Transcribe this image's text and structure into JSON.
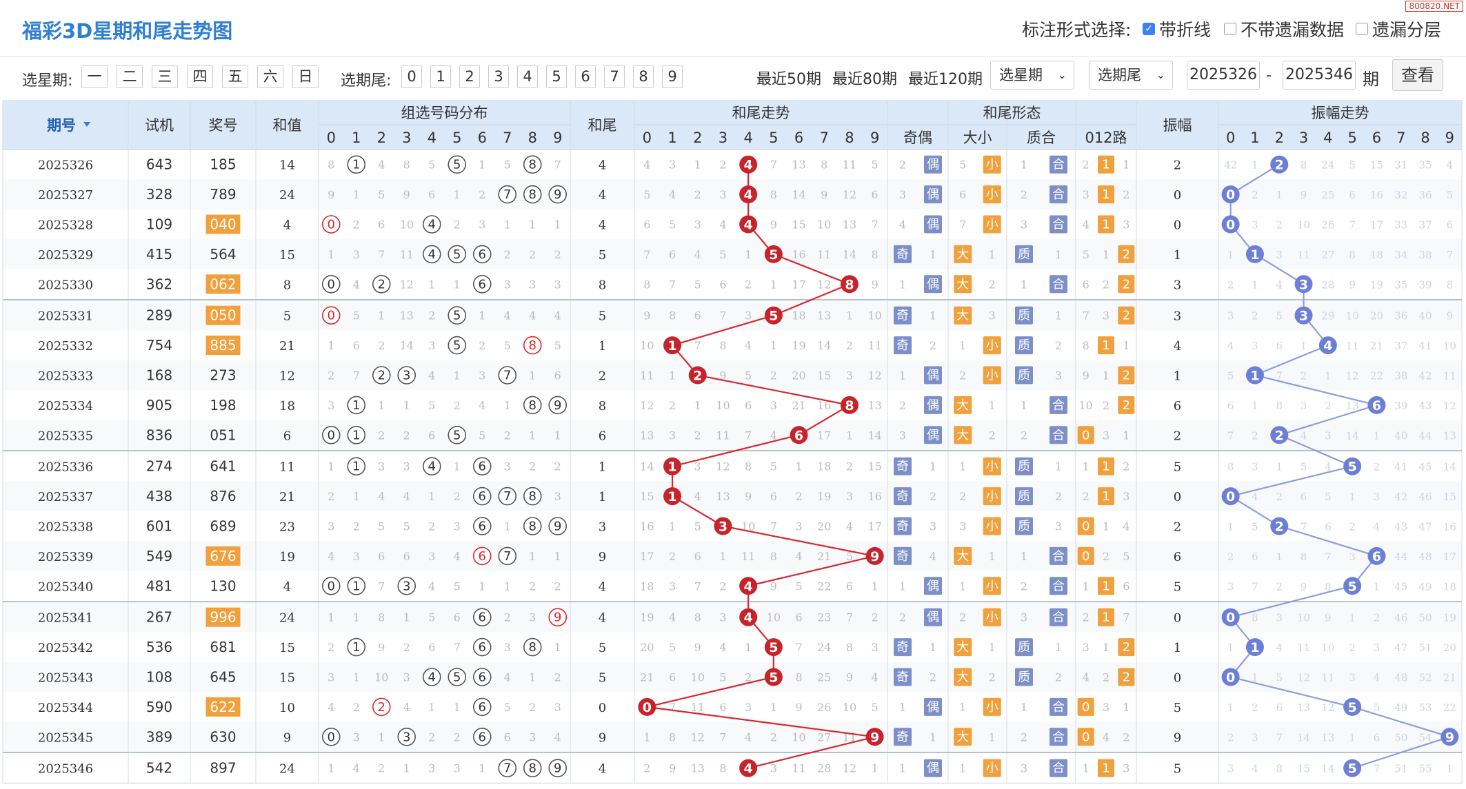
{
  "header": {
    "title": "福彩3D星期和尾走势图",
    "option_label": "标注形式选择:",
    "opt_lines": "带折线",
    "opt_nomiss": "不带遗漏数据",
    "opt_layer": "遗漏分层",
    "watermark": "800820.NET"
  },
  "filter": {
    "weekday_label": "选星期:",
    "weekdays": [
      "一",
      "二",
      "三",
      "四",
      "五",
      "六",
      "日"
    ],
    "tail_label": "选期尾:",
    "tails": [
      "0",
      "1",
      "2",
      "3",
      "4",
      "5",
      "6",
      "7",
      "8",
      "9"
    ],
    "recent50": "最近50期",
    "recent80": "最近80期",
    "recent120": "最近120期",
    "sel_week": "选星期",
    "sel_tail": "选期尾",
    "from": "2025326",
    "dash": "-",
    "to": "2025346",
    "qi": "期",
    "query": "查看"
  },
  "table": {
    "h_issue": "期号",
    "h_trial": "试机",
    "h_award": "奖号",
    "h_sum": "和值",
    "h_zuxuan": "组选号码分布",
    "h_tail": "和尾",
    "h_trend": "和尾走势",
    "h_form": "和尾形态",
    "h_parity": "奇偶",
    "h_size": "大小",
    "h_prime": "质合",
    "h_012": "012路",
    "h_amp": "振幅",
    "h_amptrend": "振幅走势",
    "parity_odd": "奇",
    "parity_even": "偶",
    "size_big": "大",
    "size_small": "小",
    "prime_p": "质",
    "prime_c": "合",
    "digits": [
      "0",
      "1",
      "2",
      "3",
      "4",
      "5",
      "6",
      "7",
      "8",
      "9"
    ],
    "rows": [
      {
        "issue": "2025326",
        "trial": "643",
        "award": "185",
        "group": false,
        "sum": "14",
        "tail": "4",
        "amp": "2",
        "mz": [
          8,
          "*",
          4,
          8,
          5,
          "*",
          1,
          5,
          "*",
          7
        ],
        "mt": [
          4,
          3,
          1,
          2,
          "*",
          7,
          13,
          8,
          11,
          5
        ],
        "mp": [
          2,
          "*",
          5,
          "*",
          1,
          "*"
        ],
        "m012": [
          2,
          "*",
          1
        ],
        "ma": [
          42,
          1,
          "*",
          8,
          24,
          5,
          15,
          31,
          35,
          4
        ]
      },
      {
        "issue": "2025327",
        "trial": "328",
        "award": "789",
        "group": false,
        "sum": "24",
        "tail": "4",
        "amp": "0",
        "mz": [
          9,
          1,
          5,
          9,
          6,
          1,
          2,
          "*",
          "*",
          "*"
        ],
        "mt": [
          5,
          4,
          2,
          3,
          "*",
          8,
          14,
          9,
          12,
          6
        ],
        "mp": [
          3,
          "*",
          6,
          "*",
          2,
          "*"
        ],
        "m012": [
          3,
          "*",
          2
        ],
        "ma": [
          "*",
          2,
          1,
          9,
          25,
          6,
          16,
          32,
          36,
          5
        ]
      },
      {
        "issue": "2025328",
        "trial": "109",
        "award": "040",
        "group": true,
        "sum": "4",
        "tail": "4",
        "amp": "0",
        "mz": [
          "*",
          2,
          6,
          10,
          "*",
          2,
          3,
          1,
          1,
          1
        ],
        "mt": [
          6,
          5,
          3,
          4,
          "*",
          9,
          15,
          10,
          13,
          7
        ],
        "mp": [
          4,
          "*",
          7,
          "*",
          3,
          "*"
        ],
        "m012": [
          4,
          "*",
          3
        ],
        "ma": [
          "*",
          3,
          2,
          10,
          26,
          7,
          17,
          33,
          37,
          6
        ]
      },
      {
        "issue": "2025329",
        "trial": "415",
        "award": "564",
        "group": false,
        "sum": "15",
        "tail": "5",
        "amp": "1",
        "mz": [
          1,
          3,
          7,
          11,
          "*",
          "*",
          "*",
          2,
          2,
          2
        ],
        "mt": [
          7,
          6,
          4,
          5,
          1,
          "*",
          16,
          11,
          14,
          8
        ],
        "mp": [
          "*",
          1,
          "*",
          1,
          "*",
          1
        ],
        "m012": [
          5,
          1,
          "*"
        ],
        "ma": [
          1,
          "*",
          3,
          11,
          27,
          8,
          18,
          34,
          38,
          7
        ]
      },
      {
        "issue": "2025330",
        "trial": "362",
        "award": "062",
        "group": true,
        "sum": "8",
        "tail": "8",
        "amp": "3",
        "mz": [
          "*",
          4,
          "*",
          12,
          1,
          1,
          "*",
          3,
          3,
          3
        ],
        "mt": [
          8,
          7,
          5,
          6,
          2,
          1,
          17,
          12,
          "*",
          9
        ],
        "mp": [
          1,
          "*",
          "*",
          2,
          1,
          "*"
        ],
        "m012": [
          6,
          2,
          "*"
        ],
        "ma": [
          2,
          1,
          4,
          "*",
          28,
          9,
          19,
          35,
          39,
          8
        ]
      },
      {
        "issue": "2025331",
        "trial": "289",
        "award": "050",
        "group": true,
        "sum": "5",
        "tail": "5",
        "amp": "3",
        "mz": [
          "*",
          5,
          1,
          13,
          2,
          "*",
          1,
          4,
          4,
          4
        ],
        "mt": [
          9,
          8,
          6,
          7,
          3,
          "*",
          18,
          13,
          1,
          10
        ],
        "mp": [
          "*",
          1,
          "*",
          3,
          "*",
          1
        ],
        "m012": [
          7,
          3,
          "*"
        ],
        "ma": [
          3,
          2,
          5,
          "*",
          29,
          10,
          20,
          36,
          40,
          9
        ]
      },
      {
        "issue": "2025332",
        "trial": "754",
        "award": "885",
        "group": true,
        "sum": "21",
        "tail": "1",
        "amp": "4",
        "mz": [
          1,
          6,
          2,
          14,
          3,
          "*",
          2,
          5,
          "*",
          5
        ],
        "mt": [
          10,
          "*",
          7,
          8,
          4,
          1,
          19,
          14,
          2,
          11
        ],
        "mp": [
          "*",
          2,
          1,
          "*",
          "*",
          2
        ],
        "m012": [
          8,
          "*",
          1
        ],
        "ma": [
          4,
          3,
          6,
          1,
          "*",
          11,
          21,
          37,
          41,
          10
        ]
      },
      {
        "issue": "2025333",
        "trial": "168",
        "award": "273",
        "group": false,
        "sum": "12",
        "tail": "2",
        "amp": "1",
        "mz": [
          2,
          7,
          "*",
          "*",
          4,
          1,
          3,
          "*",
          1,
          6
        ],
        "mt": [
          11,
          1,
          "*",
          9,
          5,
          2,
          20,
          15,
          3,
          12
        ],
        "mp": [
          1,
          "*",
          2,
          "*",
          "*",
          3
        ],
        "m012": [
          9,
          1,
          "*"
        ],
        "ma": [
          5,
          "*",
          7,
          2,
          1,
          12,
          22,
          38,
          42,
          11
        ]
      },
      {
        "issue": "2025334",
        "trial": "905",
        "award": "198",
        "group": false,
        "sum": "18",
        "tail": "8",
        "amp": "6",
        "mz": [
          3,
          "*",
          1,
          1,
          5,
          2,
          4,
          1,
          "*",
          "*"
        ],
        "mt": [
          12,
          2,
          1,
          10,
          6,
          3,
          21,
          16,
          "*",
          13
        ],
        "mp": [
          2,
          "*",
          "*",
          1,
          1,
          "*"
        ],
        "m012": [
          10,
          2,
          "*"
        ],
        "ma": [
          6,
          1,
          8,
          3,
          2,
          13,
          "*",
          39,
          43,
          12
        ]
      },
      {
        "issue": "2025335",
        "trial": "836",
        "award": "051",
        "group": false,
        "sum": "6",
        "tail": "6",
        "amp": "2",
        "mz": [
          "*",
          "*",
          2,
          2,
          6,
          "*",
          5,
          2,
          1,
          1
        ],
        "mt": [
          13,
          3,
          2,
          11,
          7,
          4,
          "*",
          17,
          1,
          14
        ],
        "mp": [
          3,
          "*",
          "*",
          2,
          2,
          "*"
        ],
        "m012": [
          "*",
          3,
          1
        ],
        "ma": [
          7,
          2,
          "*",
          4,
          3,
          14,
          1,
          40,
          44,
          13
        ]
      },
      {
        "issue": "2025336",
        "trial": "274",
        "award": "641",
        "group": false,
        "sum": "11",
        "tail": "1",
        "amp": "5",
        "mz": [
          1,
          "*",
          3,
          3,
          "*",
          1,
          "*",
          3,
          2,
          2
        ],
        "mt": [
          14,
          "*",
          3,
          12,
          8,
          5,
          1,
          18,
          2,
          15
        ],
        "mp": [
          "*",
          1,
          1,
          "*",
          "*",
          1
        ],
        "m012": [
          1,
          "*",
          2
        ],
        "ma": [
          8,
          3,
          1,
          5,
          4,
          "*",
          2,
          41,
          45,
          14
        ]
      },
      {
        "issue": "2025337",
        "trial": "438",
        "award": "876",
        "group": false,
        "sum": "21",
        "tail": "1",
        "amp": "0",
        "mz": [
          2,
          1,
          4,
          4,
          1,
          2,
          "*",
          "*",
          "*",
          3
        ],
        "mt": [
          15,
          "*",
          4,
          13,
          9,
          6,
          2,
          19,
          3,
          16
        ],
        "mp": [
          "*",
          2,
          2,
          "*",
          "*",
          2
        ],
        "m012": [
          2,
          "*",
          3
        ],
        "ma": [
          "*",
          4,
          2,
          6,
          5,
          1,
          3,
          42,
          46,
          15
        ]
      },
      {
        "issue": "2025338",
        "trial": "601",
        "award": "689",
        "group": false,
        "sum": "23",
        "tail": "3",
        "amp": "2",
        "mz": [
          3,
          2,
          5,
          5,
          2,
          3,
          "*",
          1,
          "*",
          "*"
        ],
        "mt": [
          16,
          1,
          5,
          "*",
          10,
          7,
          3,
          20,
          4,
          17
        ],
        "mp": [
          "*",
          3,
          3,
          "*",
          "*",
          3
        ],
        "m012": [
          "*",
          1,
          4
        ],
        "ma": [
          1,
          5,
          "*",
          7,
          6,
          2,
          4,
          43,
          47,
          16
        ]
      },
      {
        "issue": "2025339",
        "trial": "549",
        "award": "676",
        "group": true,
        "sum": "19",
        "tail": "9",
        "amp": "6",
        "mz": [
          4,
          3,
          6,
          6,
          3,
          4,
          "*",
          "*",
          1,
          1
        ],
        "mt": [
          17,
          2,
          6,
          1,
          11,
          8,
          4,
          21,
          5,
          "*"
        ],
        "mp": [
          "*",
          4,
          "*",
          1,
          1,
          "*"
        ],
        "m012": [
          "*",
          2,
          5
        ],
        "ma": [
          2,
          6,
          1,
          8,
          7,
          3,
          "*",
          44,
          48,
          17
        ]
      },
      {
        "issue": "2025340",
        "trial": "481",
        "award": "130",
        "group": false,
        "sum": "4",
        "tail": "4",
        "amp": "5",
        "mz": [
          "*",
          "*",
          7,
          "*",
          4,
          5,
          1,
          1,
          2,
          2
        ],
        "mt": [
          18,
          3,
          7,
          2,
          "*",
          9,
          5,
          22,
          6,
          1
        ],
        "mp": [
          1,
          "*",
          1,
          "*",
          2,
          "*"
        ],
        "m012": [
          1,
          "*",
          6
        ],
        "ma": [
          3,
          7,
          2,
          9,
          8,
          "*",
          1,
          45,
          49,
          18
        ]
      },
      {
        "issue": "2025341",
        "trial": "267",
        "award": "996",
        "group": true,
        "sum": "24",
        "tail": "4",
        "amp": "0",
        "mz": [
          1,
          1,
          8,
          1,
          5,
          6,
          "*",
          2,
          3,
          "*"
        ],
        "mt": [
          19,
          4,
          8,
          3,
          "*",
          10,
          6,
          23,
          7,
          2
        ],
        "mp": [
          2,
          "*",
          2,
          "*",
          3,
          "*"
        ],
        "m012": [
          2,
          "*",
          7
        ],
        "ma": [
          "*",
          8,
          3,
          10,
          9,
          1,
          2,
          46,
          50,
          19
        ]
      },
      {
        "issue": "2025342",
        "trial": "536",
        "award": "681",
        "group": false,
        "sum": "15",
        "tail": "5",
        "amp": "1",
        "mz": [
          2,
          "*",
          9,
          2,
          6,
          7,
          "*",
          3,
          "*",
          1
        ],
        "mt": [
          20,
          5,
          9,
          4,
          1,
          "*",
          7,
          24,
          8,
          3
        ],
        "mp": [
          "*",
          1,
          "*",
          1,
          "*",
          1
        ],
        "m012": [
          3,
          1,
          "*"
        ],
        "ma": [
          1,
          "*",
          4,
          11,
          10,
          2,
          3,
          47,
          51,
          20
        ]
      },
      {
        "issue": "2025343",
        "trial": "108",
        "award": "645",
        "group": false,
        "sum": "15",
        "tail": "5",
        "amp": "0",
        "mz": [
          3,
          1,
          10,
          3,
          "*",
          "*",
          "*",
          4,
          1,
          2
        ],
        "mt": [
          21,
          6,
          10,
          5,
          2,
          "*",
          8,
          25,
          9,
          4
        ],
        "mp": [
          "*",
          2,
          "*",
          2,
          "*",
          2
        ],
        "m012": [
          4,
          2,
          "*"
        ],
        "ma": [
          "*",
          1,
          5,
          12,
          11,
          3,
          4,
          48,
          52,
          21
        ]
      },
      {
        "issue": "2025344",
        "trial": "590",
        "award": "622",
        "group": true,
        "sum": "10",
        "tail": "0",
        "amp": "5",
        "mz": [
          4,
          2,
          "*",
          4,
          1,
          1,
          "*",
          5,
          2,
          3
        ],
        "mt": [
          "*",
          7,
          11,
          6,
          3,
          1,
          9,
          26,
          10,
          5
        ],
        "mp": [
          1,
          "*",
          1,
          "*",
          1,
          "*"
        ],
        "m012": [
          "*",
          3,
          1
        ],
        "ma": [
          1,
          2,
          6,
          13,
          12,
          "*",
          5,
          49,
          53,
          22
        ]
      },
      {
        "issue": "2025345",
        "trial": "389",
        "award": "630",
        "group": false,
        "sum": "9",
        "tail": "9",
        "amp": "9",
        "mz": [
          "*",
          3,
          1,
          "*",
          2,
          2,
          "*",
          6,
          3,
          4
        ],
        "mt": [
          1,
          8,
          12,
          7,
          4,
          2,
          10,
          27,
          11,
          "*"
        ],
        "mp": [
          "*",
          1,
          "*",
          1,
          2,
          "*"
        ],
        "m012": [
          "*",
          4,
          2
        ],
        "ma": [
          2,
          3,
          7,
          14,
          13,
          1,
          6,
          50,
          54,
          "*"
        ]
      },
      {
        "issue": "2025346",
        "trial": "542",
        "award": "897",
        "group": false,
        "sum": "24",
        "tail": "4",
        "amp": "5",
        "mz": [
          1,
          4,
          2,
          1,
          3,
          3,
          1,
          "*",
          "*",
          "*"
        ],
        "mt": [
          2,
          9,
          13,
          8,
          "*",
          3,
          11,
          28,
          12,
          1
        ],
        "mp": [
          1,
          "*",
          1,
          "*",
          3,
          "*"
        ],
        "m012": [
          1,
          "*",
          3
        ],
        "ma": [
          3,
          4,
          8,
          15,
          14,
          "*",
          7,
          51,
          55,
          1
        ]
      }
    ]
  },
  "colors": {
    "hot": "#d9272e",
    "trend": "#3b82f6",
    "amp": "#6b7fd7",
    "group": "#f0a03c",
    "hdr": "#dbe8f7",
    "zebra": "#f7f9fb"
  }
}
